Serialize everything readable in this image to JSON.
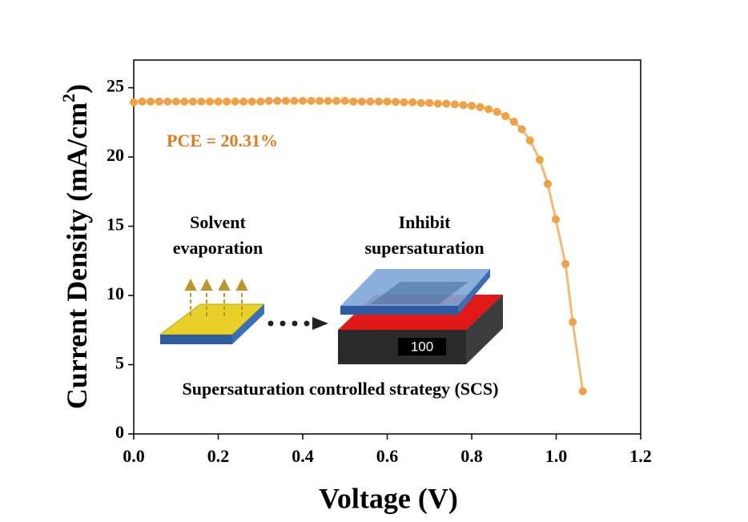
{
  "chart_data": {
    "type": "line",
    "xlabel": "Voltage (V)",
    "ylabel": {
      "text": "Current Density (mA/cm",
      "sup": "2",
      "end": ")"
    },
    "x": [
      0,
      0.02,
      0.04,
      0.06,
      0.08,
      0.1,
      0.12,
      0.14,
      0.16,
      0.18,
      0.2,
      0.22,
      0.24,
      0.26,
      0.28,
      0.3,
      0.32,
      0.34,
      0.36,
      0.38,
      0.4,
      0.42,
      0.44,
      0.46,
      0.48,
      0.5,
      0.52,
      0.54,
      0.56,
      0.58,
      0.6,
      0.62,
      0.64,
      0.66,
      0.68,
      0.7,
      0.72,
      0.74,
      0.76,
      0.78,
      0.8,
      0.82,
      0.84,
      0.86,
      0.88,
      0.9,
      0.919,
      0.938,
      0.961,
      0.98,
      0.999,
      1.022,
      1.039,
      1.063
    ],
    "series": [
      {
        "color": "#f0a045",
        "line_color": "#f5b877",
        "values": [
          23.95,
          24.0,
          24.0,
          24.0,
          24.0,
          24.0,
          24.0,
          24.0,
          24.0,
          24.0,
          24.0,
          24.0,
          24.0,
          24.0,
          24.0,
          24.0,
          24.05,
          24.05,
          24.05,
          24.05,
          24.05,
          24.05,
          24.05,
          24.05,
          24.05,
          24.05,
          24.0,
          24.0,
          24.0,
          24.0,
          24.0,
          23.98,
          23.95,
          23.95,
          23.9,
          23.9,
          23.85,
          23.85,
          23.8,
          23.75,
          23.7,
          23.6,
          23.45,
          23.25,
          22.95,
          22.55,
          22.0,
          21.2,
          19.8,
          18.05,
          15.5,
          12.27,
          8.08,
          3.08
        ]
      }
    ],
    "xlim": [
      0,
      1.2
    ],
    "ylim": [
      0,
      27
    ],
    "xticks": [
      {
        "value": 0,
        "label": "0.0"
      },
      0.2,
      0.4,
      0.6,
      0.8,
      {
        "value": 1,
        "label": "1.0"
      },
      1.2
    ],
    "yticks": [
      0,
      5,
      10,
      15,
      20,
      25
    ],
    "annotations": {
      "pce": "PCE = 20.31%",
      "left": [
        "Solvent",
        "evaporation"
      ],
      "right": [
        "Inhibit",
        "supersaturation"
      ],
      "orientation": "100",
      "caption": "Supersaturation controlled strategy (SCS)"
    }
  }
}
